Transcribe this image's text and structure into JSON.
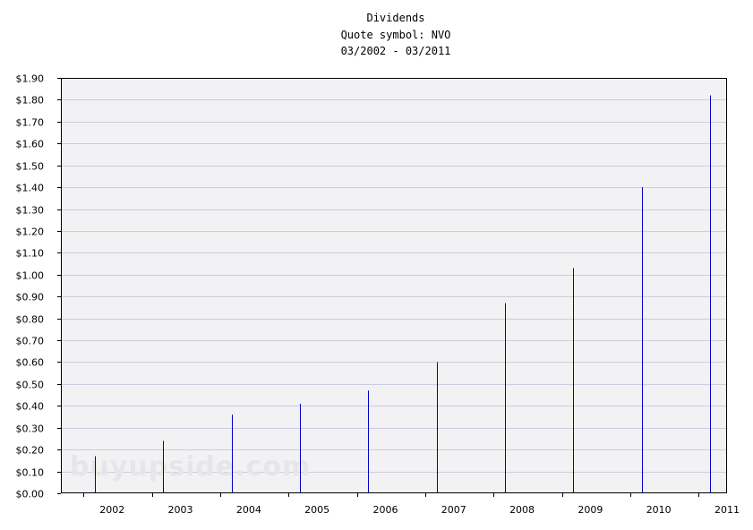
{
  "chart_data": {
    "type": "bar",
    "title": "Dividends",
    "subtitle": "Quote symbol: NVO",
    "date_range": "03/2002 - 03/2011",
    "watermark": "buyupside.com",
    "xlabel": "",
    "ylabel": "",
    "x_ticks": [
      "2002",
      "2003",
      "2004",
      "2005",
      "2006",
      "2007",
      "2008",
      "2009",
      "2010",
      "2011"
    ],
    "y_ticks": [
      "$0.00",
      "$0.10",
      "$0.20",
      "$0.30",
      "$0.40",
      "$0.50",
      "$0.60",
      "$0.70",
      "$0.80",
      "$0.90",
      "$1.00",
      "$1.10",
      "$1.20",
      "$1.30",
      "$1.40",
      "$1.50",
      "$1.60",
      "$1.70",
      "$1.80",
      "$1.90"
    ],
    "xlim": [
      "2001-09",
      "2011-06"
    ],
    "ylim": [
      0,
      1.9
    ],
    "grid": true,
    "legend": "none",
    "series": [
      {
        "points": [
          {
            "date": "2002-03",
            "value": 0.17
          },
          {
            "date": "2003-03",
            "value": 0.24
          },
          {
            "date": "2004-03",
            "value": 0.36
          },
          {
            "date": "2005-03",
            "value": 0.41
          },
          {
            "date": "2006-03",
            "value": 0.47
          },
          {
            "date": "2007-03",
            "value": 0.6
          },
          {
            "date": "2008-03",
            "value": 0.87
          },
          {
            "date": "2009-03",
            "value": 1.03
          },
          {
            "date": "2010-03",
            "value": 1.4
          },
          {
            "date": "2011-03",
            "value": 1.82
          }
        ]
      }
    ],
    "colors": {
      "bar": "#0000cc",
      "plot_background": "#f2f2f4",
      "gridline": "#ccccdd",
      "axis": "#000000"
    }
  }
}
